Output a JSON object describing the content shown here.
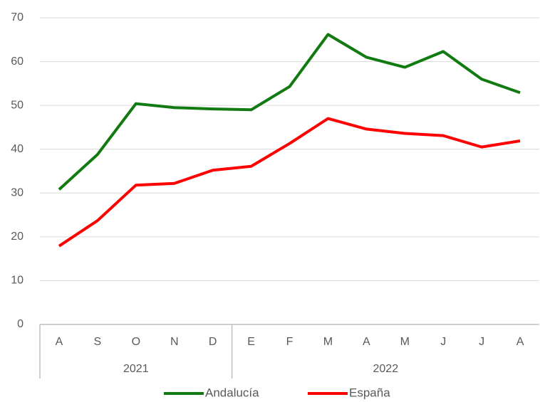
{
  "chart_data": {
    "type": "line",
    "categories": [
      "A",
      "S",
      "O",
      "N",
      "D",
      "E",
      "F",
      "M",
      "A",
      "M",
      "J",
      "J",
      "A"
    ],
    "groups": [
      {
        "label": "2021",
        "count": 5
      },
      {
        "label": "2022",
        "count": 8
      }
    ],
    "series": [
      {
        "name": "Andalucía",
        "color": "#117a11",
        "values": [
          30.8,
          38.8,
          50.4,
          49.5,
          49.2,
          49.0,
          54.3,
          66.2,
          61.0,
          58.7,
          62.3,
          56.0,
          52.9
        ]
      },
      {
        "name": "España",
        "color": "#ff0000",
        "values": [
          17.9,
          23.7,
          31.8,
          32.2,
          35.2,
          36.1,
          41.3,
          47.0,
          44.6,
          43.6,
          43.1,
          40.5,
          41.9
        ]
      }
    ],
    "ylim": [
      0,
      70
    ],
    "yticks": [
      0,
      10,
      20,
      30,
      40,
      50,
      60,
      70
    ],
    "grid": true,
    "legend": "bottom"
  }
}
